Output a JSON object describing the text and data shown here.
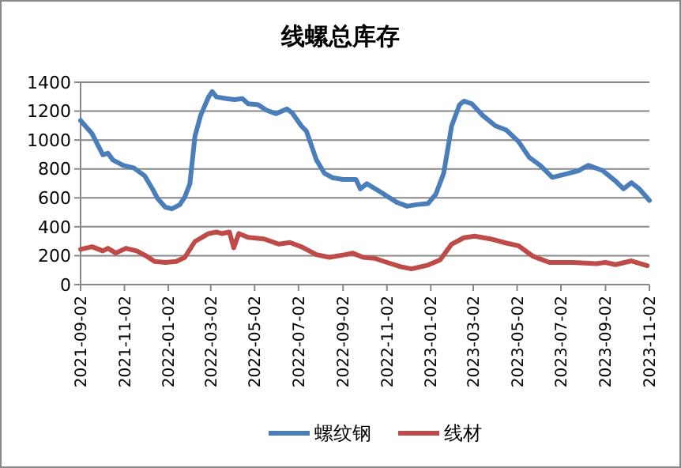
{
  "chart_data": {
    "type": "line",
    "title": "线螺总库存",
    "xlim": [
      "2021-09-02",
      "2023-11-02"
    ],
    "xticks": [
      "2021-09-02",
      "2021-11-02",
      "2022-01-02",
      "2022-03-02",
      "2022-05-02",
      "2022-07-02",
      "2022-09-02",
      "2022-11-02",
      "2023-01-02",
      "2023-03-02",
      "2023-05-02",
      "2023-07-02",
      "2023-09-02",
      "2023-11-02"
    ],
    "ylim": [
      0,
      1400
    ],
    "yticks": [
      0,
      200,
      400,
      600,
      800,
      1000,
      1200,
      1400
    ],
    "grid": "y",
    "legend": "bottom",
    "marker": "none",
    "line_style": "solid",
    "series": [
      {
        "name": "螺纹钢",
        "color": "#4a7ebb",
        "x": [
          "2021-09-02",
          "2021-09-18",
          "2021-10-03",
          "2021-10-10",
          "2021-10-17",
          "2021-10-31",
          "2021-11-15",
          "2021-11-30",
          "2021-12-11",
          "2021-12-18",
          "2021-12-29",
          "2022-01-07",
          "2022-01-18",
          "2022-01-25",
          "2022-02-01",
          "2022-02-08",
          "2022-02-16",
          "2022-02-27",
          "2022-03-04",
          "2022-03-10",
          "2022-03-24",
          "2022-04-04",
          "2022-04-15",
          "2022-04-23",
          "2022-05-07",
          "2022-05-18",
          "2022-06-01",
          "2022-06-16",
          "2022-06-23",
          "2022-07-06",
          "2022-07-13",
          "2022-07-27",
          "2022-08-07",
          "2022-08-18",
          "2022-09-02",
          "2022-09-20",
          "2022-09-26",
          "2022-10-05",
          "2022-10-23",
          "2022-11-15",
          "2022-11-30",
          "2022-12-13",
          "2022-12-29",
          "2023-01-09",
          "2023-01-20",
          "2023-01-31",
          "2023-02-11",
          "2023-02-17",
          "2023-02-28",
          "2023-03-15",
          "2023-04-02",
          "2023-04-17",
          "2023-05-04",
          "2023-05-19",
          "2023-06-03",
          "2023-06-20",
          "2023-07-08",
          "2023-07-27",
          "2023-08-09",
          "2023-08-29",
          "2023-09-16",
          "2023-09-27",
          "2023-10-08",
          "2023-10-19",
          "2023-11-02"
        ],
        "values": [
          1135,
          1044,
          898,
          909,
          862,
          825,
          807,
          753,
          662,
          596,
          535,
          524,
          553,
          607,
          698,
          1025,
          1171,
          1298,
          1335,
          1298,
          1287,
          1280,
          1287,
          1251,
          1244,
          1207,
          1182,
          1215,
          1189,
          1098,
          1062,
          862,
          771,
          740,
          727,
          727,
          662,
          698,
          644,
          571,
          542,
          553,
          560,
          625,
          771,
          1098,
          1244,
          1269,
          1251,
          1171,
          1098,
          1069,
          989,
          880,
          825,
          742,
          764,
          789,
          825,
          789,
          716,
          662,
          705,
          662,
          582
        ]
      },
      {
        "name": "线材",
        "color": "#be4b48",
        "x": [
          "2021-09-02",
          "2021-09-18",
          "2021-10-03",
          "2021-10-10",
          "2021-10-21",
          "2021-11-04",
          "2021-11-19",
          "2021-12-03",
          "2021-12-14",
          "2021-12-29",
          "2022-01-13",
          "2022-01-25",
          "2022-02-08",
          "2022-02-27",
          "2022-03-10",
          "2022-03-17",
          "2022-03-28",
          "2022-04-03",
          "2022-04-10",
          "2022-04-23",
          "2022-05-15",
          "2022-06-05",
          "2022-06-20",
          "2022-07-06",
          "2022-07-27",
          "2022-08-14",
          "2022-09-05",
          "2022-09-15",
          "2022-09-30",
          "2022-10-16",
          "2022-10-29",
          "2022-11-21",
          "2022-12-06",
          "2022-12-29",
          "2023-01-15",
          "2023-01-31",
          "2023-02-17",
          "2023-03-04",
          "2023-03-26",
          "2023-04-17",
          "2023-05-04",
          "2023-05-24",
          "2023-06-16",
          "2023-07-19",
          "2023-08-20",
          "2023-09-02",
          "2023-09-16",
          "2023-10-08",
          "2023-10-30"
        ],
        "values": [
          244,
          262,
          233,
          251,
          218,
          251,
          233,
          196,
          160,
          153,
          160,
          189,
          298,
          353,
          364,
          353,
          364,
          255,
          353,
          327,
          316,
          280,
          291,
          262,
          207,
          189,
          207,
          218,
          189,
          182,
          160,
          124,
          109,
          135,
          171,
          280,
          324,
          335,
          316,
          287,
          269,
          196,
          153,
          153,
          145,
          153,
          138,
          164,
          131
        ]
      }
    ]
  }
}
